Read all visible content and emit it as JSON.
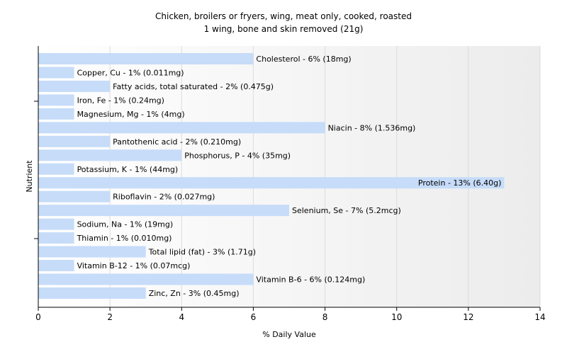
{
  "chart_data": {
    "type": "bar",
    "orientation": "horizontal",
    "title": "Chicken, broilers or fryers, wing, meat only, cooked, roasted",
    "subtitle": "1 wing, bone and skin removed (21g)",
    "xlabel": "% Daily Value",
    "ylabel": "Nutrient",
    "xlim": [
      0,
      14
    ],
    "xticks": [
      0,
      2,
      4,
      6,
      8,
      10,
      12,
      14
    ],
    "grid": true,
    "bar_color": "#c6dcf9",
    "categories": [
      "Cholesterol",
      "Copper, Cu",
      "Fatty acids, total saturated",
      "Iron, Fe",
      "Magnesium, Mg",
      "Niacin",
      "Pantothenic acid",
      "Phosphorus, P",
      "Potassium, K",
      "Protein",
      "Riboflavin",
      "Selenium, Se",
      "Sodium, Na",
      "Thiamin",
      "Total lipid (fat)",
      "Vitamin B-12",
      "Vitamin B-6",
      "Zinc, Zn"
    ],
    "values": [
      6,
      1,
      2,
      1,
      1,
      8,
      2,
      4,
      1,
      13,
      2,
      7,
      1,
      1,
      3,
      1,
      6,
      3
    ],
    "labels": [
      "Cholesterol - 6% (18mg)",
      "Copper, Cu - 1% (0.011mg)",
      "Fatty acids, total saturated - 2% (0.475g)",
      "Iron, Fe - 1% (0.24mg)",
      "Magnesium, Mg - 1% (4mg)",
      "Niacin - 8% (1.536mg)",
      "Pantothenic acid - 2% (0.210mg)",
      "Phosphorus, P - 4% (35mg)",
      "Potassium, K - 1% (44mg)",
      "Protein - 13% (6.40g)",
      "Riboflavin - 2% (0.027mg)",
      "Selenium, Se - 7% (5.2mcg)",
      "Sodium, Na - 1% (19mg)",
      "Thiamin - 1% (0.010mg)",
      "Total lipid (fat) - 3% (1.71g)",
      "Vitamin B-12 - 1% (0.07mcg)",
      "Vitamin B-6 - 6% (0.124mg)",
      "Zinc, Zn - 3% (0.45mg)"
    ]
  }
}
